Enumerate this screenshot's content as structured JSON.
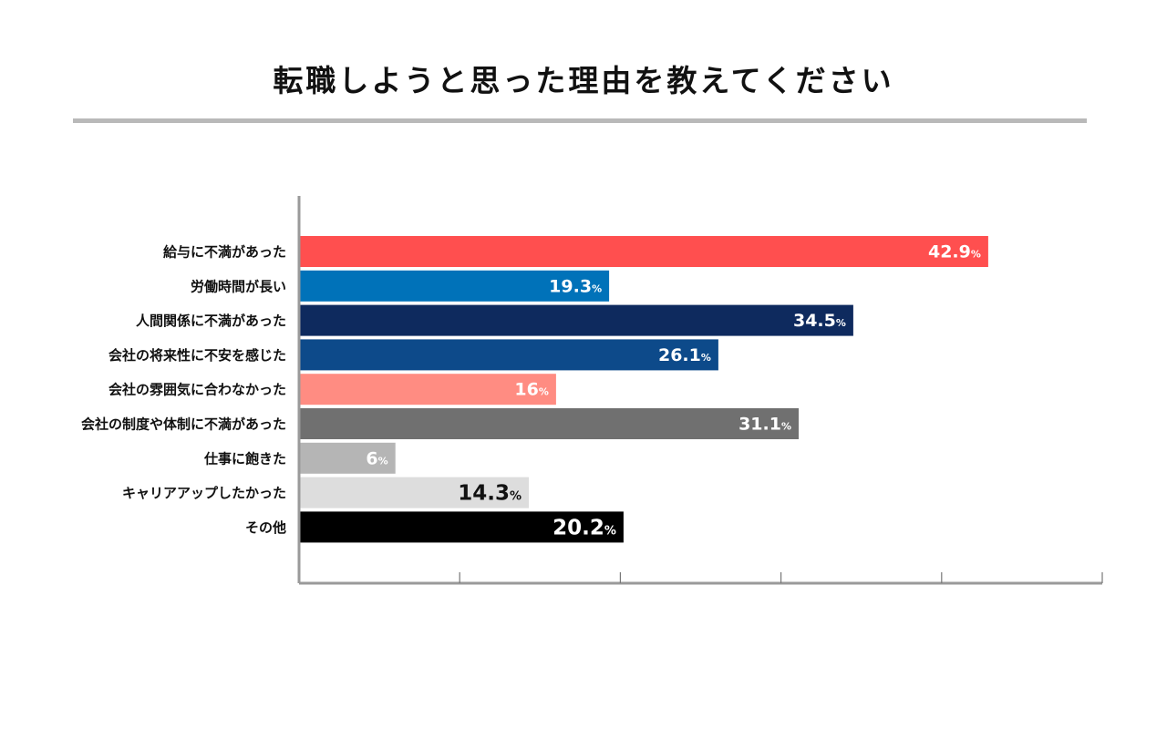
{
  "chart_data": {
    "type": "bar",
    "orientation": "horizontal",
    "title": "転職しようと思った理由を教えてください",
    "categories": [
      "給与に不満があった",
      "労働時間が長い",
      "人間関係に不満があった",
      "会社の将来性に不安を感じた",
      "会社の雰囲気に合わなかった",
      "会社の制度や体制に不満があった",
      "仕事に飽きた",
      "キャリアアップしたかった",
      "その他"
    ],
    "values": [
      42.9,
      19.3,
      34.5,
      26.1,
      16,
      31.1,
      6,
      14.3,
      20.2
    ],
    "value_labels": [
      "42.9",
      "19.3",
      "34.5",
      "26.1",
      "16",
      "31.1",
      "6",
      "14.3",
      "20.2"
    ],
    "unit": "%",
    "colors": [
      "#ff4f4f",
      "#0072b9",
      "#0e2a5e",
      "#0d4a8a",
      "#ff8c82",
      "#707070",
      "#b5b5b5",
      "#dddddd",
      "#000000"
    ],
    "label_colors": [
      "#ffffff",
      "#ffffff",
      "#ffffff",
      "#ffffff",
      "#ffffff",
      "#ffffff",
      "#ffffff",
      "#111111",
      "#ffffff"
    ],
    "xlim": [
      0,
      50
    ],
    "xticks": [
      0,
      10,
      20,
      30,
      40,
      50
    ],
    "xlabel": "",
    "ylabel": "",
    "grid": false,
    "legend": "none"
  }
}
